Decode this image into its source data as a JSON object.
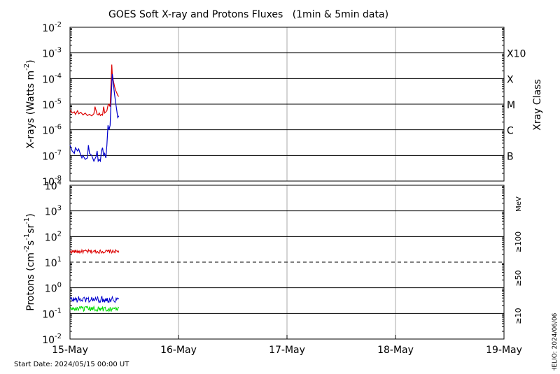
{
  "title": "GOES Soft X-ray and Protons Fluxes   (1min & 5min data)",
  "footer": {
    "start_date": "Start Date: 2024/05/15 00:00 UT",
    "helio": "HELIO: 2024/06/06"
  },
  "colors": {
    "red": "#dd0000",
    "blue": "#0000cc",
    "green": "#00dd00",
    "grid": "#000000",
    "day_grid": "#aaaaaa"
  },
  "chart_data": [
    {
      "type": "line",
      "name": "xray",
      "ylabel_main": "X-rays (Watts m",
      "ylabel_exp": "-2",
      "ylabel_tail": ")",
      "y_scale": "log",
      "ylim": [
        1e-08,
        0.01
      ],
      "y_ticks": [
        {
          "base": "10",
          "exp": "-8"
        },
        {
          "base": "10",
          "exp": "-7"
        },
        {
          "base": "10",
          "exp": "-6"
        },
        {
          "base": "10",
          "exp": "-5"
        },
        {
          "base": "10",
          "exp": "-4"
        },
        {
          "base": "10",
          "exp": "-3"
        },
        {
          "base": "10",
          "exp": "-2"
        }
      ],
      "right_label": "Xray Class",
      "classes": [
        {
          "label": "B",
          "value": 1e-07
        },
        {
          "label": "C",
          "value": 1e-06
        },
        {
          "label": "M",
          "value": 1e-05
        },
        {
          "label": "X",
          "value": 0.0001
        },
        {
          "label": "X10",
          "value": 0.001
        }
      ],
      "series": [
        {
          "color": "red",
          "x": [
            0.0,
            0.02,
            0.04,
            0.05,
            0.07,
            0.08,
            0.1,
            0.12,
            0.14,
            0.16,
            0.18,
            0.2,
            0.22,
            0.23,
            0.25,
            0.26,
            0.27,
            0.28,
            0.29,
            0.3,
            0.31,
            0.32,
            0.33,
            0.34,
            0.35,
            0.36,
            0.37,
            0.38,
            0.385,
            0.39,
            0.4,
            0.41,
            0.42,
            0.43,
            0.44,
            0.45
          ],
          "y": [
            6e-06,
            4.5e-06,
            5e-06,
            4e-06,
            5.5e-06,
            4.2e-06,
            4.8e-06,
            3.8e-06,
            4.5e-06,
            3.6e-06,
            4e-06,
            3.5e-06,
            4.2e-06,
            8e-06,
            4e-06,
            3.8e-06,
            4.5e-06,
            3.6e-06,
            4e-06,
            3.7e-06,
            8e-06,
            4.5e-06,
            5e-06,
            5.5e-06,
            9e-06,
            1e-05,
            8e-06,
            0.0001,
            0.00035,
            0.00015,
            8e-05,
            5e-05,
            3.5e-05,
            2.8e-05,
            2.2e-05,
            2e-05
          ]
        },
        {
          "color": "blue",
          "x": [
            0.0,
            0.02,
            0.04,
            0.05,
            0.07,
            0.08,
            0.1,
            0.11,
            0.12,
            0.14,
            0.16,
            0.17,
            0.18,
            0.2,
            0.22,
            0.24,
            0.25,
            0.26,
            0.27,
            0.28,
            0.29,
            0.3,
            0.31,
            0.32,
            0.33,
            0.34,
            0.35,
            0.36,
            0.37,
            0.38,
            0.39,
            0.4,
            0.41,
            0.42,
            0.43,
            0.44,
            0.45
          ],
          "y": [
            2.5e-07,
            1.5e-07,
            1.2e-07,
            2e-07,
            1.5e-07,
            1.8e-07,
            1e-07,
            8e-08,
            1e-07,
            7e-08,
            8e-08,
            2.5e-07,
            1.2e-07,
            1e-07,
            6e-08,
            9e-08,
            1.5e-07,
            6e-08,
            7e-08,
            6e-08,
            1.5e-07,
            2e-07,
            1e-07,
            1.2e-07,
            8e-08,
            2.5e-07,
            1.5e-06,
            1e-06,
            1.5e-06,
            2e-05,
            0.00015,
            6e-05,
            2.5e-05,
            1.2e-05,
            6e-06,
            3e-06,
            3.5e-06
          ]
        }
      ]
    },
    {
      "type": "line",
      "name": "protons",
      "ylabel_main": "Protons (cm",
      "ylabel_sup1": "-2",
      "ylabel_mid": "s",
      "ylabel_sup2": "-1",
      "ylabel_mid2": "sr",
      "ylabel_sup3": "-1",
      "ylabel_tail": ")",
      "y_scale": "log",
      "ylim": [
        0.01,
        10000
      ],
      "y_ticks": [
        {
          "base": "10",
          "exp": "-2"
        },
        {
          "base": "10",
          "exp": "-1"
        },
        {
          "base": "10",
          "exp": "0"
        },
        {
          "base": "10",
          "exp": "1"
        },
        {
          "base": "10",
          "exp": "2"
        },
        {
          "base": "10",
          "exp": "3"
        },
        {
          "base": "10",
          "exp": "4"
        }
      ],
      "threshold": 10,
      "unit_label": "MeV",
      "series_labels": [
        {
          "label": "≥100",
          "color": "green"
        },
        {
          "label": "≥50",
          "color": "blue"
        },
        {
          "label": "≥10",
          "color": "red"
        }
      ],
      "series": [
        {
          "color": "red",
          "x_start": 0.0,
          "x_end": 0.45,
          "level": 26,
          "jitter": 0.07
        },
        {
          "color": "blue",
          "x_start": 0.0,
          "x_end": 0.45,
          "level": 0.35,
          "jitter": 0.12
        },
        {
          "color": "green",
          "x_start": 0.0,
          "x_end": 0.45,
          "level": 0.15,
          "jitter": 0.1
        }
      ]
    }
  ],
  "x_axis": {
    "xlim": [
      0,
      4
    ],
    "ticks": [
      {
        "value": 0,
        "label": "15-May"
      },
      {
        "value": 1,
        "label": "16-May"
      },
      {
        "value": 2,
        "label": "17-May"
      },
      {
        "value": 3,
        "label": "18-May"
      },
      {
        "value": 4,
        "label": "19-May"
      }
    ]
  }
}
